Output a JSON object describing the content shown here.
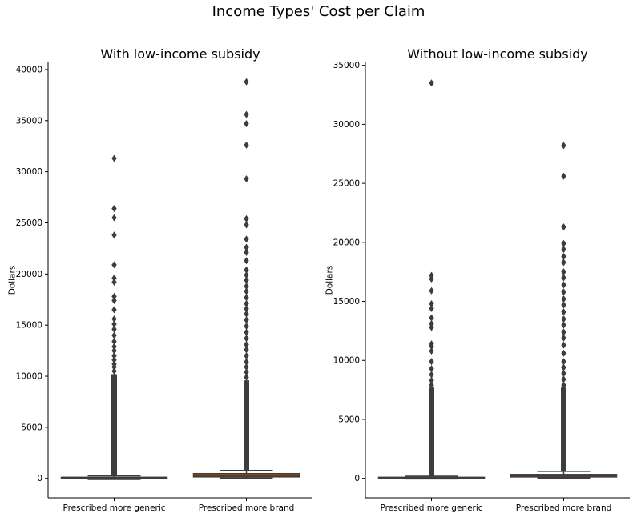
{
  "figure": {
    "title": "Income Types' Cost per Claim"
  },
  "chart_data": [
    {
      "type": "box",
      "title": "With low-income subsidy",
      "xlabel": "",
      "ylabel": "Dollars",
      "ylim": [
        -1900,
        40700
      ],
      "yticks": [
        0,
        5000,
        10000,
        15000,
        20000,
        25000,
        30000,
        35000,
        40000
      ],
      "categories": [
        "Prescribed more generic",
        "Prescribed more brand"
      ],
      "boxes": [
        {
          "category": "Prescribed more generic",
          "color": "#3a6fa0",
          "whisker_low": -100,
          "q1": 40,
          "median": 70,
          "q3": 110,
          "whisker_high": 250,
          "outliers_dense_from": 280,
          "outliers_dense_to": 10200,
          "outliers": [
            10500,
            10900,
            11200,
            11600,
            12000,
            12500,
            12900,
            13400,
            14000,
            14600,
            15100,
            15600,
            16500,
            17400,
            17800,
            19200,
            19600,
            20900,
            23800,
            25500,
            26400,
            31300
          ]
        },
        {
          "category": "Prescribed more brand",
          "color": "#b35a1f",
          "whisker_low": 30,
          "q1": 150,
          "median": 280,
          "q3": 470,
          "whisker_high": 780,
          "outliers_dense_from": 800,
          "outliers_dense_to": 9600,
          "outliers": [
            9900,
            10400,
            10900,
            11400,
            12000,
            12600,
            13100,
            13700,
            14300,
            14900,
            15500,
            16100,
            16600,
            17100,
            17700,
            18300,
            18800,
            19400,
            19900,
            20400,
            21300,
            22100,
            22600,
            23400,
            24800,
            25400,
            29300,
            32600,
            34700,
            35600,
            38800
          ]
        }
      ]
    },
    {
      "type": "box",
      "title": "Without low-income subsidy",
      "xlabel": "",
      "ylabel": "Dollars",
      "ylim": [
        -1650,
        35250
      ],
      "yticks": [
        0,
        5000,
        10000,
        15000,
        20000,
        25000,
        30000,
        35000
      ],
      "categories": [
        "Prescribed more generic",
        "Prescribed more brand"
      ],
      "boxes": [
        {
          "category": "Prescribed more generic",
          "color": "#3a6fa0",
          "whisker_low": -50,
          "q1": 30,
          "median": 60,
          "q3": 90,
          "whisker_high": 180,
          "outliers_dense_from": 200,
          "outliers_dense_to": 7700,
          "outliers": [
            7900,
            8300,
            8800,
            9300,
            9900,
            10800,
            11200,
            11400,
            12800,
            13100,
            13600,
            14400,
            14800,
            15900,
            16900,
            17200,
            33500
          ]
        },
        {
          "category": "Prescribed more brand",
          "color": "#b35a1f",
          "whisker_low": 30,
          "q1": 120,
          "median": 220,
          "q3": 330,
          "whisker_high": 600,
          "outliers_dense_from": 620,
          "outliers_dense_to": 7700,
          "outliers": [
            7900,
            8400,
            8900,
            9400,
            9900,
            10600,
            11300,
            11900,
            12400,
            13000,
            13500,
            14100,
            14700,
            15200,
            15800,
            16400,
            17000,
            17500,
            18300,
            18800,
            19400,
            19900,
            21300,
            25600,
            28200
          ]
        }
      ]
    }
  ]
}
